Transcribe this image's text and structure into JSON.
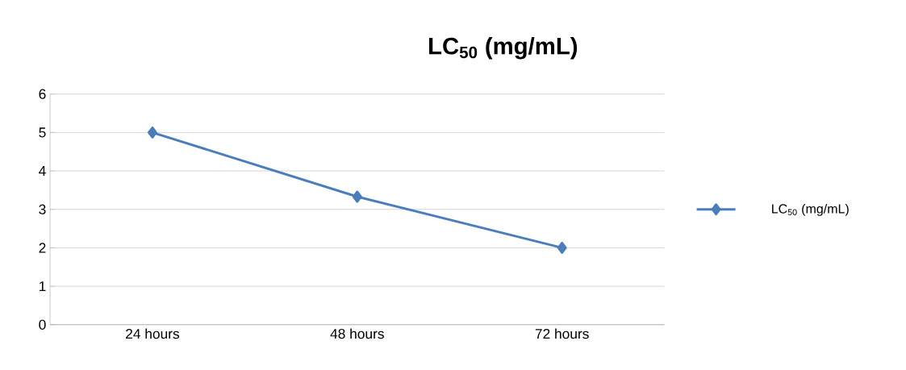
{
  "chart_data": {
    "type": "line",
    "title": "LC$_{50}$ (mg/mL)",
    "categories": [
      "24 hours",
      "48 hours",
      "72 hours"
    ],
    "series": [
      {
        "name": "LC$_{50}$ (mg/mL)",
        "color": "#4a7ebb",
        "values": [
          5,
          3.33,
          2
        ]
      }
    ],
    "ylim": [
      0,
      6
    ],
    "yticks": [
      0,
      1,
      2,
      3,
      4,
      5,
      6
    ],
    "grid": "y",
    "legend": "right",
    "marker": "diamond",
    "line_style": "solid"
  }
}
